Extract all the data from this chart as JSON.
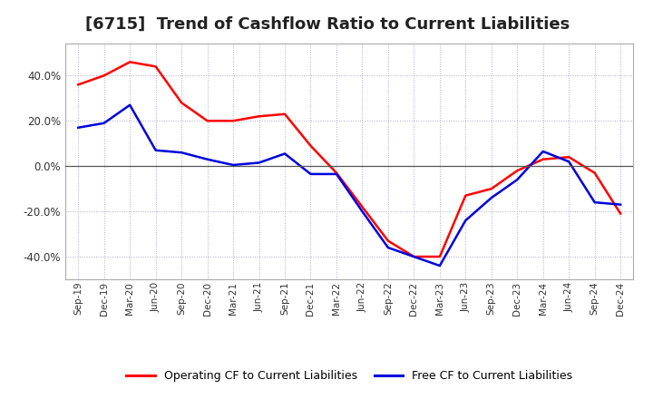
{
  "title": "[6715]  Trend of Cashflow Ratio to Current Liabilities",
  "x_labels": [
    "Sep-19",
    "Dec-19",
    "Mar-20",
    "Jun-20",
    "Sep-20",
    "Dec-20",
    "Mar-21",
    "Jun-21",
    "Sep-21",
    "Dec-21",
    "Mar-22",
    "Jun-22",
    "Sep-22",
    "Dec-22",
    "Mar-23",
    "Jun-23",
    "Sep-23",
    "Dec-23",
    "Mar-24",
    "Jun-24",
    "Sep-24",
    "Dec-24"
  ],
  "operating_cf": [
    0.36,
    0.4,
    0.46,
    0.44,
    0.28,
    0.2,
    0.2,
    0.22,
    0.23,
    0.09,
    -0.03,
    -0.18,
    -0.33,
    -0.4,
    -0.4,
    -0.13,
    -0.1,
    -0.02,
    0.03,
    0.04,
    -0.03,
    -0.21
  ],
  "free_cf": [
    0.17,
    0.19,
    0.27,
    0.07,
    0.06,
    0.03,
    0.005,
    0.015,
    0.055,
    -0.035,
    -0.035,
    -0.2,
    -0.36,
    -0.4,
    -0.44,
    -0.24,
    -0.14,
    -0.06,
    0.065,
    0.02,
    -0.16,
    -0.17
  ],
  "operating_color": "#ff0000",
  "free_color": "#0000dd",
  "ylim": [
    -0.5,
    0.54
  ],
  "yticks": [
    -0.4,
    -0.2,
    0.0,
    0.2,
    0.4
  ],
  "background_color": "#ffffff",
  "plot_bg_color": "#ffffff",
  "grid_color": "#aaaacc",
  "legend_op": "Operating CF to Current Liabilities",
  "legend_free": "Free CF to Current Liabilities",
  "title_fontsize": 13,
  "title_color": "#222222"
}
